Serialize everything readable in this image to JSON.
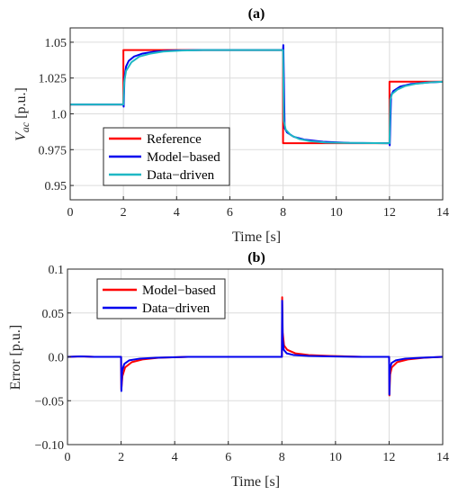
{
  "chart_data": [
    {
      "type": "line",
      "title": "(a)",
      "xlabel": "Time [s]",
      "ylabel_main": "V",
      "ylabel_sub": "ac",
      "ylabel_unit": " [p.u.]",
      "xlim": [
        0,
        14
      ],
      "ylim": [
        0.94,
        1.06
      ],
      "xticks": [
        0,
        2,
        4,
        6,
        8,
        10,
        12,
        14
      ],
      "xtick_labels": [
        "0",
        "2",
        "4",
        "6",
        "8",
        "10",
        "12",
        "14"
      ],
      "yticks": [
        0.95,
        0.975,
        1.0,
        1.025,
        1.05
      ],
      "ytick_labels": [
        "0.95",
        "0.975",
        "1.0",
        "1.025",
        "1.05"
      ],
      "grid": true,
      "legend_position": "bottom-left",
      "series": [
        {
          "name": "Reference",
          "color": "#ff0000",
          "x": [
            0,
            2,
            2,
            8,
            8,
            12,
            12,
            14
          ],
          "y": [
            1.0065,
            1.0065,
            1.0445,
            1.0445,
            0.9795,
            0.9795,
            1.0225,
            1.0225
          ]
        },
        {
          "name": "Model−based",
          "color": "#0000ee",
          "x": [
            0,
            2,
            2.01,
            2.04,
            2.1,
            2.2,
            2.4,
            2.7,
            3.2,
            4.0,
            5.0,
            8,
            8.01,
            8.06,
            8.15,
            8.4,
            8.8,
            9.5,
            10.5,
            12,
            12.01,
            12.06,
            12.15,
            12.4,
            12.8,
            13.4,
            14
          ],
          "y": [
            1.0065,
            1.0065,
            1.005,
            1.025,
            1.033,
            1.037,
            1.04,
            1.042,
            1.0435,
            1.0443,
            1.0445,
            1.0445,
            1.048,
            0.99,
            0.987,
            0.984,
            0.982,
            0.9805,
            0.9797,
            0.9795,
            0.978,
            1.013,
            1.016,
            1.019,
            1.0208,
            1.0218,
            1.0224
          ]
        },
        {
          "name": "Data−driven",
          "color": "#1fb8c4",
          "x": [
            0,
            2,
            2.03,
            2.1,
            2.3,
            2.6,
            3.0,
            3.5,
            4.2,
            5.0,
            8,
            8.03,
            8.1,
            8.3,
            8.6,
            9.0,
            9.6,
            10.3,
            12,
            12.03,
            12.1,
            12.3,
            12.6,
            13.0,
            13.5,
            14
          ],
          "y": [
            1.0065,
            1.0065,
            1.022,
            1.03,
            1.036,
            1.04,
            1.042,
            1.0435,
            1.0442,
            1.0445,
            1.0445,
            0.995,
            0.989,
            0.985,
            0.9825,
            0.981,
            0.98,
            0.9797,
            0.9795,
            1.01,
            1.014,
            1.017,
            1.0195,
            1.021,
            1.022,
            1.0224
          ]
        }
      ]
    },
    {
      "type": "line",
      "title": "(b)",
      "xlabel": "Time [s]",
      "ylabel": "Error [p.u.]",
      "xlim": [
        0,
        14
      ],
      "ylim": [
        -0.1,
        0.1
      ],
      "xticks": [
        0,
        2,
        4,
        6,
        8,
        10,
        12,
        14
      ],
      "xtick_labels": [
        "0",
        "2",
        "4",
        "6",
        "8",
        "10",
        "12",
        "14"
      ],
      "yticks": [
        -0.1,
        -0.05,
        0.0,
        0.05,
        0.1
      ],
      "ytick_labels": [
        "−0.10",
        "−0.05",
        "0.0",
        "0.05",
        "0.1"
      ],
      "grid": true,
      "legend_position": "top-left",
      "series": [
        {
          "name": "Model−based",
          "color": "#ff0000",
          "x": [
            0,
            0.5,
            1.0,
            2.0,
            2.01,
            2.05,
            2.15,
            2.4,
            2.8,
            3.4,
            4.5,
            8.0,
            8.01,
            8.03,
            8.08,
            8.2,
            8.5,
            9.0,
            9.8,
            11,
            12.0,
            12.01,
            12.04,
            12.1,
            12.3,
            12.7,
            13.3,
            14
          ],
          "y": [
            0,
            0.0005,
            0,
            0,
            -0.037,
            -0.022,
            -0.012,
            -0.006,
            -0.003,
            -0.001,
            0,
            0,
            0.068,
            0.028,
            0.013,
            0.008,
            0.004,
            0.002,
            0.001,
            0,
            0,
            -0.044,
            -0.02,
            -0.012,
            -0.006,
            -0.003,
            -0.001,
            0
          ]
        },
        {
          "name": "Data−driven",
          "color": "#0000ee",
          "x": [
            0,
            0.5,
            1.0,
            2.0,
            2.01,
            2.04,
            2.12,
            2.3,
            2.7,
            3.3,
            4.5,
            8.0,
            8.01,
            8.03,
            8.07,
            8.18,
            8.45,
            9.0,
            9.8,
            11,
            12.0,
            12.01,
            12.03,
            12.09,
            12.25,
            12.6,
            13.2,
            14
          ],
          "y": [
            0,
            0.0005,
            0,
            0,
            -0.039,
            -0.016,
            -0.008,
            -0.004,
            -0.002,
            -0.001,
            0,
            0,
            0.064,
            0.02,
            0.008,
            0.004,
            0.002,
            0.001,
            0.0005,
            0,
            0,
            -0.043,
            -0.014,
            -0.007,
            -0.004,
            -0.002,
            -0.001,
            0
          ]
        }
      ]
    }
  ]
}
